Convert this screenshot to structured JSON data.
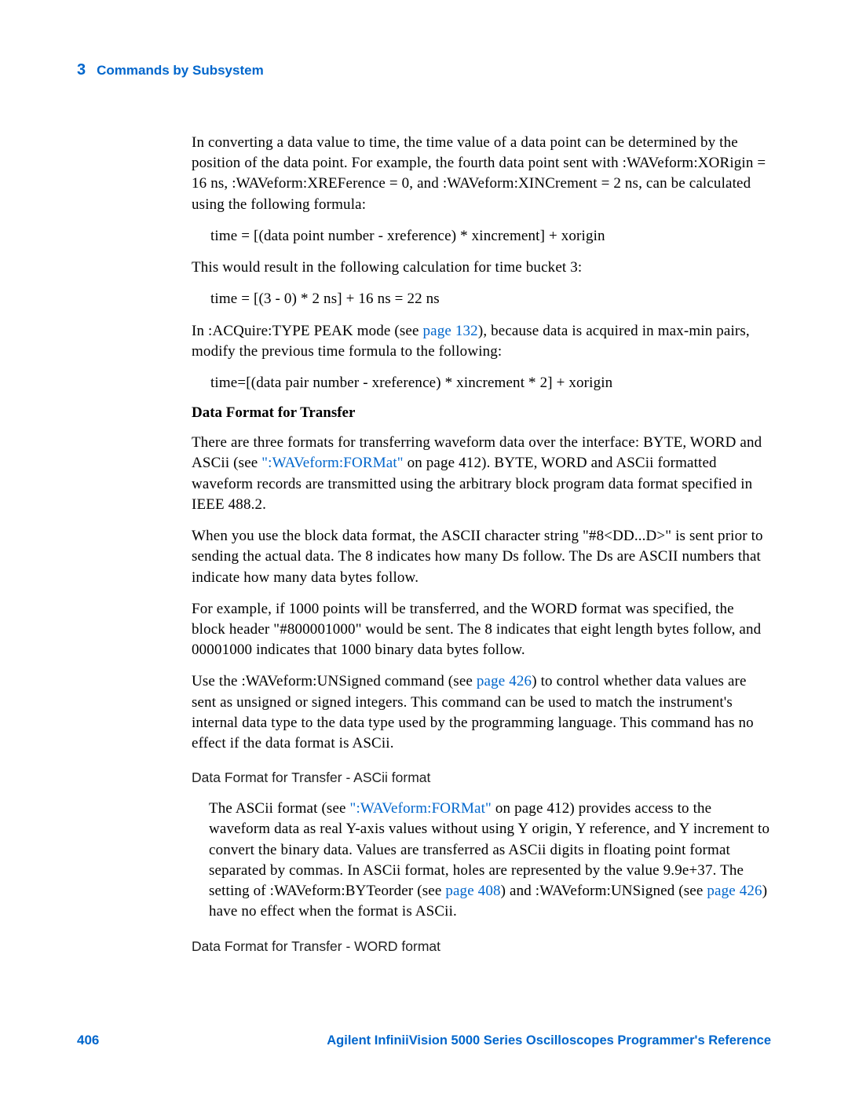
{
  "header": {
    "chapter_num": "3",
    "chapter_title": "Commands by Subsystem"
  },
  "body": {
    "p1": "In converting a data value to time, the time value of a data point can be determined by the position of the data point. For example, the fourth data point sent with :WAVeform:XORigin = 16 ns, :WAVeform:XREFerence = 0, and :WAVeform:XINCrement = 2 ns, can be calculated using the following formula:",
    "f1": "time = [(data point number - xreference) * xincrement] + xorigin",
    "p2": "This would result in the following calculation for time bucket 3:",
    "f2": "time = [(3 - 0) * 2 ns] + 16 ns = 22 ns",
    "p3a": "In :ACQuire:TYPE PEAK mode (see ",
    "p3_link": "page 132",
    "p3b": "), because data is acquired in max-min pairs, modify the previous time formula to the following:",
    "f3": "time=[(data pair number - xreference) * xincrement * 2] + xorigin",
    "h1": "Data Format for Transfer",
    "p4a": "There are three formats for transferring waveform data over the interface: BYTE, WORD and ASCii (see ",
    "p4_link": "\":WAVeform:FORMat\"",
    "p4b": " on page 412). BYTE, WORD and ASCii formatted waveform records are transmitted using the arbitrary block program data format specified in IEEE 488.2.",
    "p5": "When you use the block data format, the ASCII character string \"#8<DD...D>\" is sent prior to sending the actual data. The 8 indicates how many Ds follow. The Ds are ASCII numbers that indicate how many data bytes follow.",
    "p6": "For example, if 1000 points will be transferred, and the WORD format was specified, the block header \"#800001000\" would be sent. The 8 indicates that eight length bytes follow, and 00001000 indicates that 1000 binary data bytes follow.",
    "p7a": "Use the :WAVeform:UNSigned command (see ",
    "p7_link": "page 426",
    "p7b": ") to control whether data values are sent as unsigned or signed integers. This command can be used to match the instrument's internal data type to the data type used by the programming language. This command has no effect if the data format is ASCii.",
    "sh1": "Data Format for Transfer - ASCii format",
    "p8a": "The ASCii format (see ",
    "p8_link1": "\":WAVeform:FORMat\"",
    "p8b": " on page 412) provides access to the waveform data as real Y-axis values without using Y origin, Y reference, and Y increment to convert the binary data. Values are transferred as ASCii digits in floating point format separated by commas. In ASCii format, holes are represented by the value 9.9e+37. The setting of :WAVeform:BYTeorder (see ",
    "p8_link2": "page 408",
    "p8c": ") and :WAVeform:UNSigned (see ",
    "p8_link3": "page 426",
    "p8d": ") have no effect when the format is ASCii.",
    "sh2": "Data Format for Transfer - WORD format"
  },
  "footer": {
    "page_num": "406",
    "title": "Agilent InfiniiVision 5000 Series Oscilloscopes Programmer's Reference"
  },
  "colors": {
    "accent": "#0066cc",
    "text": "#000000",
    "background": "#ffffff"
  }
}
